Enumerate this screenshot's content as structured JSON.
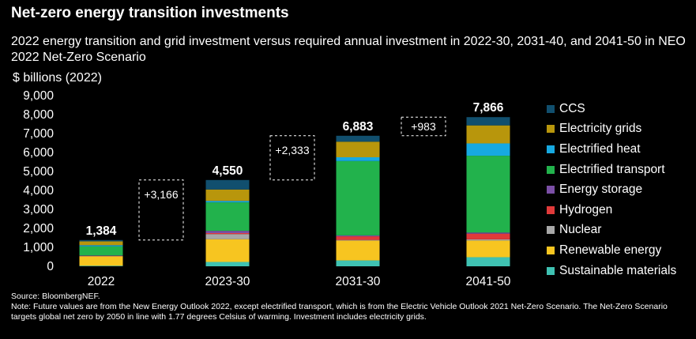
{
  "chart_data": {
    "type": "bar",
    "stacked": true,
    "title": "Net-zero energy transition investments",
    "subtitle": "2022 energy transition and grid investment versus required annual investment in 2022-30, 2031-40, and 2041-50 in NEO 2022 Net-Zero Scenario",
    "ylabel": "$ billions (2022)",
    "ylim": [
      0,
      9000
    ],
    "yticks": [
      "0",
      "1,000",
      "2,000",
      "3,000",
      "4,000",
      "5,000",
      "6,000",
      "7,000",
      "8,000",
      "9,000"
    ],
    "categories": [
      "2022",
      "2023-30",
      "2031-30",
      "2041-50"
    ],
    "totals": [
      "1,384",
      "4,550",
      "6,883",
      "7,866"
    ],
    "differences": [
      "+3,166",
      "+2,333",
      "+983"
    ],
    "series": [
      {
        "name": "Sustainable materials",
        "color": "#3fc2b2",
        "values": [
          30,
          230,
          310,
          480
        ]
      },
      {
        "name": "Renewable energy",
        "color": "#f7c520",
        "values": [
          495,
          1200,
          1050,
          880
        ]
      },
      {
        "name": "Nuclear",
        "color": "#a8a8a8",
        "values": [
          20,
          270,
          30,
          60
        ]
      },
      {
        "name": "Hydrogen",
        "color": "#e03a3a",
        "values": [
          5,
          50,
          190,
          300
        ]
      },
      {
        "name": "Energy storage",
        "color": "#7b4fa6",
        "values": [
          20,
          120,
          50,
          60
        ]
      },
      {
        "name": "Electrified transport",
        "color": "#22b24c",
        "values": [
          480,
          1500,
          3920,
          4050
        ]
      },
      {
        "name": "Electrified heat",
        "color": "#17a9e1",
        "values": [
          64,
          80,
          200,
          650
        ]
      },
      {
        "name": "Electricity grids",
        "color": "#b8960c",
        "values": [
          200,
          600,
          820,
          950
        ]
      },
      {
        "name": "CCS",
        "color": "#114f6e",
        "values": [
          70,
          500,
          313,
          436
        ]
      }
    ],
    "legend_order": [
      "CCS",
      "Electricity grids",
      "Electrified heat",
      "Electrified transport",
      "Energy storage",
      "Hydrogen",
      "Nuclear",
      "Renewable energy",
      "Sustainable materials"
    ]
  },
  "source": "Source: BloombergNEF.",
  "note": "Note: Future values are from the New Energy Outlook 2022, except electrified transport, which is from the Electric Vehicle Outlook 2021 Net-Zero Scenario. The Net-Zero Scenario targets global net zero by 2050 in line with 1.77 degrees Celsius of warming. Investment includes electricity grids."
}
